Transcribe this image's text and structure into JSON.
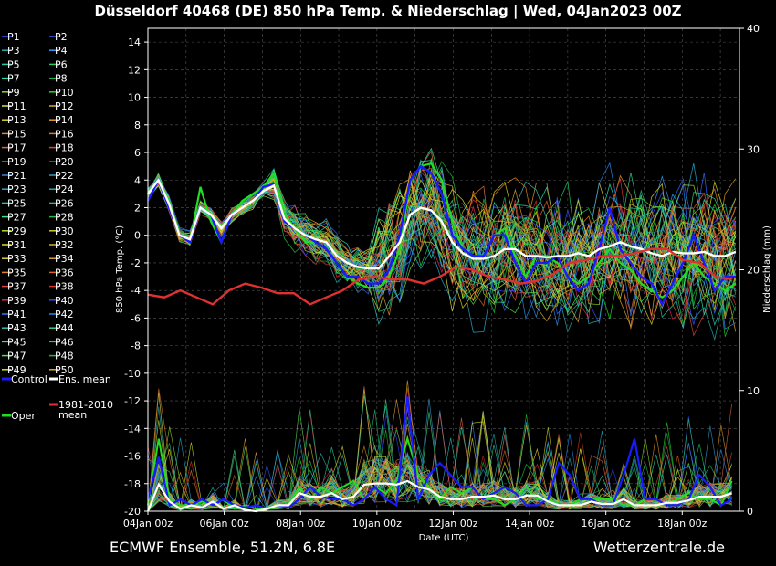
{
  "header": {
    "title": "Düsseldorf 40468 (DE)  850 hPa Temp. & Niederschlag | Wed, 04Jan2023 00Z"
  },
  "footer": {
    "left": "ECMWF Ensemble, 51.2N, 6.8E",
    "right": "Wetterzentrale.de"
  },
  "colors": {
    "background": "#000000",
    "control": "#1a1aff",
    "ens_mean": "#ffffff",
    "climate": "#e03030",
    "oper": "#22dd22",
    "grid": "#555555"
  },
  "chart_data": {
    "type": "line",
    "title": "Düsseldorf 40468 (DE)  850 hPa Temp. & Niederschlag | Wed, 04Jan2023 00Z",
    "xlabel": "Date (UTC)",
    "ylabel": "850 hPa Temp. (°C)",
    "y2label": "Niederschlag (mm)",
    "ylim": [
      -20,
      15
    ],
    "y2lim": [
      0,
      40
    ],
    "xlim_hours": [
      0,
      372
    ],
    "grid": true,
    "legend_position": "left-outside",
    "x_ticks": [
      "04Jan 00z",
      "06Jan 00z",
      "08Jan 00z",
      "10Jan 00z",
      "12Jan 00z",
      "14Jan 00z",
      "16Jan 00z",
      "18Jan 00z"
    ],
    "y_ticks": [
      14,
      12,
      10,
      8,
      6,
      4,
      2,
      0,
      -2,
      -4,
      -6,
      -8,
      -10,
      -12,
      -14,
      -16,
      -18,
      -20
    ],
    "y2_ticks": [
      40,
      30,
      20,
      10,
      0
    ],
    "legend_members": [
      "P1",
      "P2",
      "P3",
      "P4",
      "P5",
      "P6",
      "P7",
      "P8",
      "P9",
      "P10",
      "P11",
      "P12",
      "P13",
      "P14",
      "P15",
      "P16",
      "P17",
      "P18",
      "P19",
      "P20",
      "P21",
      "P22",
      "P23",
      "P24",
      "P25",
      "P26",
      "P27",
      "P28",
      "P29",
      "P30",
      "P31",
      "P32",
      "P33",
      "P34",
      "P35",
      "P36",
      "P37",
      "P38",
      "P39",
      "P40",
      "P41",
      "P42",
      "P43",
      "P44",
      "P45",
      "P46",
      "P47",
      "P48",
      "P49",
      "P50"
    ],
    "legend_member_colors": [
      "#3355ff",
      "#3366ff",
      "#22aaaa",
      "#3399ff",
      "#22ccaa",
      "#22cc66",
      "#22ddaa",
      "#22aa55",
      "#88dd22",
      "#22dd22",
      "#dddd44",
      "#ddaa22",
      "#ddcc22",
      "#dd9922",
      "#dd8833",
      "#dd7733",
      "#dd6644",
      "#dd4433",
      "#dd3333",
      "#cc2222",
      "#3388dd",
      "#3399cc",
      "#22aacc",
      "#22aaaa",
      "#22cc99",
      "#22bb77",
      "#44dd88",
      "#22bb44",
      "#aadd22",
      "#cccc22",
      "#dddd22",
      "#ddaa33",
      "#ddcc33",
      "#dd9933",
      "#dd8822",
      "#dd6622",
      "#dd4444",
      "#dd3322",
      "#dd2255",
      "#3344ff",
      "#3377ff",
      "#2288ee",
      "#33bbbb",
      "#33cc88",
      "#33ddaa",
      "#22cc55",
      "#55dd55",
      "#22bb33",
      "#ccdd22",
      "#ddaa22"
    ],
    "legend_specials": [
      {
        "name": "Control",
        "color": "#1a1aff"
      },
      {
        "name": "Ens. mean",
        "color": "#ffffff"
      },
      {
        "name": "1981-2010\nmean",
        "color": "#e03030"
      },
      {
        "name": "Oper",
        "color": "#22dd22"
      }
    ],
    "control_temp": [
      2.5,
      4,
      2,
      0,
      -0.5,
      2,
      1.5,
      -0.5,
      1.5,
      2,
      2.5,
      3.5,
      3.7,
      1,
      0.5,
      0,
      -0.5,
      -1,
      -2,
      -3,
      -3,
      -3.5,
      -3.5,
      -2.5,
      0,
      4,
      5,
      4.5,
      3,
      0,
      -1,
      -1.5,
      -1.5,
      0,
      0,
      -2,
      -3.5,
      -2,
      -2,
      -1.5,
      -3,
      -4,
      -3.5,
      -1,
      2,
      -1,
      -2,
      -3,
      -3.5,
      -5,
      -3.5,
      -2,
      0,
      -2,
      -4,
      -3,
      -3
    ],
    "ens_mean_temp": [
      3,
      4,
      2.3,
      0,
      -0.3,
      2,
      1.5,
      0.5,
      1.5,
      2,
      2.5,
      3.2,
      3.6,
      1.2,
      0.5,
      0,
      -0.3,
      -0.5,
      -1.5,
      -2,
      -2.3,
      -2.4,
      -2.4,
      -1.5,
      -0.5,
      1.5,
      2,
      1.8,
      1,
      -0.5,
      -1.3,
      -1.7,
      -1.7,
      -1.5,
      -1,
      -1,
      -1.5,
      -1.5,
      -1.6,
      -1.5,
      -1.5,
      -1.3,
      -1.5,
      -1,
      -0.8,
      -0.5,
      -0.8,
      -1,
      -1.3,
      -1.5,
      -1.2,
      -1.3,
      -1.3,
      -1.2,
      -1.5,
      -1.5,
      -1.2
    ],
    "oper_temp": [
      3,
      4,
      2.5,
      0,
      -0.5,
      3.5,
      1,
      -0.5,
      1.5,
      2.5,
      3,
      3.5,
      4.5,
      1.5,
      0.5,
      -0.5,
      -0.5,
      -1,
      -2,
      -3,
      -3.5,
      -3.8,
      -3.8,
      -3,
      -1,
      4,
      5,
      5.2,
      4,
      1,
      -1,
      -1.5,
      -1.5,
      0,
      0.5,
      -1.5,
      -3,
      -1.5,
      -1.5,
      -2,
      -3,
      -3.5,
      -3,
      -2,
      -1,
      -2,
      -2.5,
      -3.5,
      -4,
      -4.5,
      -4,
      -3,
      -2,
      -3,
      -3.5,
      -4,
      -3.5
    ],
    "climate_temp": [
      -4.3,
      -4.5,
      -4,
      -4.5,
      -5,
      -4,
      -3.5,
      -3.8,
      -4.2,
      -4.2,
      -5,
      -4.5,
      -4,
      -3.2,
      -3,
      -3.2,
      -3.2,
      -3.5,
      -3,
      -2.3,
      -2.5,
      -3,
      -3.2,
      -3.5,
      -3.3,
      -2.8,
      -2,
      -1.8,
      -1.5,
      -1.5,
      -1.3,
      -1,
      -1,
      -1.8,
      -2,
      -3,
      -3.2
    ],
    "ens_mean_precip": [
      0,
      2.2,
      0.8,
      0.2,
      0.5,
      0.3,
      0.8,
      0.2,
      0.5,
      0.1,
      0,
      0.2,
      0.5,
      0.5,
      1.5,
      1.2,
      1.2,
      1.5,
      1,
      1.2,
      2.2,
      2.3,
      2.3,
      2.2,
      2.5,
      2,
      1.8,
      1.2,
      1,
      1,
      1.2,
      1.2,
      1.3,
      1,
      1,
      1.3,
      1.3,
      0.8,
      0.5,
      0.5,
      0.5,
      0.8,
      0.6,
      0.6,
      1,
      0.5,
      0.5,
      0.5,
      0.7,
      0.7,
      0.9,
      1.2,
      1.2,
      1.2,
      1.5
    ],
    "control_precip": [
      1,
      4.5,
      0.5,
      1,
      0.5,
      1,
      0.5,
      1,
      0.5,
      0.3,
      0.5,
      0.2,
      0.5,
      0.3,
      1,
      2,
      1.2,
      1,
      1,
      0.5,
      1,
      2,
      1,
      0.5,
      9.5,
      1,
      3,
      4,
      3,
      2,
      2,
      1,
      1.5,
      2,
      1.5,
      0.5,
      0.5,
      1,
      4,
      3,
      1,
      1,
      0.5,
      0.5,
      3,
      6,
      1,
      1,
      0.5,
      0.5,
      1,
      3,
      2,
      0.5,
      1
    ],
    "oper_precip": [
      0.5,
      6,
      1,
      0.5,
      0.5,
      0.8,
      0.5,
      1,
      0.2,
      0.5,
      0.2,
      0.2,
      0.3,
      0.5,
      2,
      1,
      2,
      1.5,
      2,
      2.5,
      1,
      2,
      1.5,
      2.5,
      6,
      3,
      2,
      1,
      2,
      1.5,
      2,
      1,
      1,
      0.5,
      1,
      2,
      1,
      1,
      0.5,
      0.5,
      1,
      1,
      1,
      1,
      0.5,
      0.5,
      1,
      1,
      0.5,
      1,
      1.5,
      1,
      1,
      0.5,
      2.5
    ]
  }
}
